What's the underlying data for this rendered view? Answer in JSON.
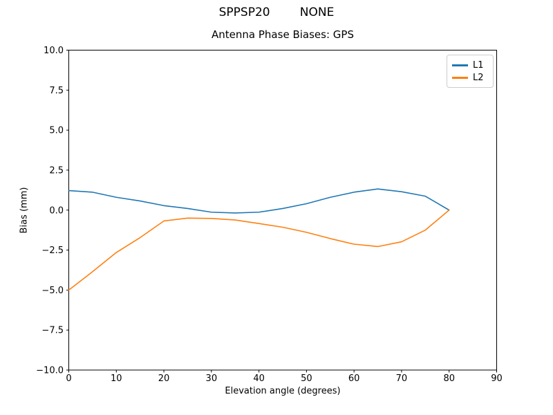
{
  "chart_data": {
    "type": "line",
    "suptitle": "SPPSP20        NONE",
    "title": "Antenna Phase Biases: GPS",
    "xlabel": "Elevation angle (degrees)",
    "ylabel": "Bias (mm)",
    "xlim": [
      0,
      90
    ],
    "ylim": [
      -10,
      10
    ],
    "x_ticks": [
      0,
      10,
      20,
      30,
      40,
      50,
      60,
      70,
      80,
      90
    ],
    "y_ticks": [
      -10,
      -7.5,
      -5,
      -2.5,
      0,
      2.5,
      5,
      7.5,
      10
    ],
    "grid": false,
    "legend_position": "upper right",
    "x": [
      0,
      5,
      10,
      15,
      20,
      25,
      30,
      35,
      40,
      45,
      50,
      55,
      60,
      65,
      70,
      75,
      80
    ],
    "series": [
      {
        "name": "L1",
        "color": "#1f77b4",
        "values": [
          1.22,
          1.12,
          0.8,
          0.57,
          0.28,
          0.1,
          -0.13,
          -0.18,
          -0.13,
          0.1,
          0.4,
          0.8,
          1.12,
          1.32,
          1.15,
          0.87,
          0.0
        ]
      },
      {
        "name": "L2",
        "color": "#ff7f0e",
        "values": [
          -5.0,
          -3.85,
          -2.65,
          -1.72,
          -0.68,
          -0.5,
          -0.52,
          -0.62,
          -0.84,
          -1.07,
          -1.39,
          -1.78,
          -2.13,
          -2.28,
          -1.98,
          -1.25,
          0.0
        ]
      }
    ]
  }
}
